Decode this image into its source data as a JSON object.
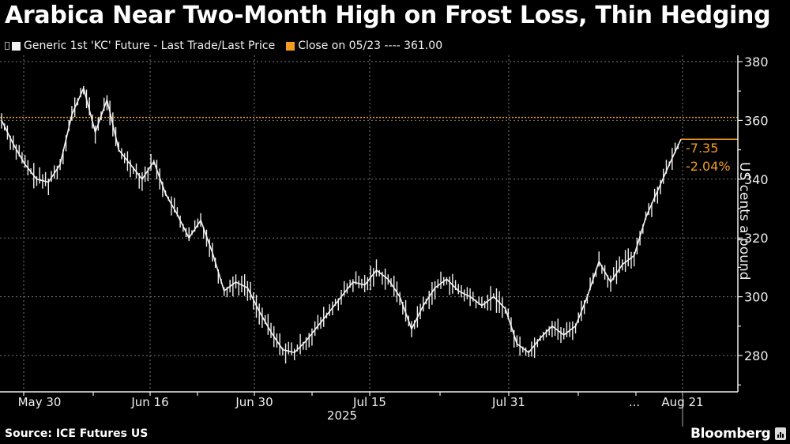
{
  "title": "Arabica Near Two-Month High on Frost Loss, Thin Hedging",
  "legend": {
    "series_label": "Generic 1st 'KC' Future - Last Trade/Last Price",
    "series_color": "#f0f0f0",
    "close_label": "Close on 05/23 ---- 361.00",
    "close_color": "#f39c1f"
  },
  "annotation": {
    "change": "-7.35",
    "change_pct": "-2.04%",
    "color": "#f39c1f"
  },
  "axis": {
    "ylabel": "US cents a pound",
    "year_label": "2025",
    "ellipsis": "..."
  },
  "footer": {
    "source": "Source: ICE Futures US",
    "brand": "Bloomberg"
  },
  "chart_data": {
    "type": "line",
    "title": "Arabica Near Two-Month High on Frost Loss, Thin Hedging",
    "xlabel": "2025",
    "ylabel": "US cents a pound",
    "ylim": [
      268,
      384
    ],
    "yticks": [
      280,
      300,
      320,
      340,
      360,
      380
    ],
    "xticks": [
      "May 30",
      "Jun 16",
      "Jun 30",
      "Jul 15",
      "Jul 31",
      "...",
      "Aug 21"
    ],
    "grid": true,
    "legend_position": "top-left",
    "reference_line": {
      "label": "Close on 05/23",
      "value": 361.0
    },
    "last_value_annotation": {
      "change": -7.35,
      "change_pct": -2.04,
      "approx_last": 353.6
    },
    "series": [
      {
        "name": "Generic 1st 'KC' Future - Last Trade/Last Price",
        "x": [
          "May 26",
          "May 28",
          "May 30",
          "Jun 2",
          "Jun 4",
          "Jun 6",
          "Jun 9",
          "Jun 10",
          "Jun 11",
          "Jun 12",
          "Jun 13",
          "Jun 16",
          "Jun 17",
          "Jun 18",
          "Jun 19",
          "Jun 20",
          "Jun 23",
          "Jun 24",
          "Jun 25",
          "Jun 26",
          "Jun 27",
          "Jun 30",
          "Jul 1",
          "Jul 2",
          "Jul 3",
          "Jul 7",
          "Jul 8",
          "Jul 9",
          "Jul 10",
          "Jul 11",
          "Jul 14",
          "Jul 15",
          "Jul 16",
          "Jul 17",
          "Jul 18",
          "Jul 21",
          "Jul 22",
          "Jul 23",
          "Jul 24",
          "Jul 25",
          "Jul 28",
          "Jul 29",
          "Jul 30",
          "Jul 31",
          "Aug 1",
          "Aug 4",
          "Aug 5",
          "Aug 6",
          "Aug 7",
          "Aug 8",
          "Aug 11",
          "Aug 12",
          "Aug 13",
          "Aug 14",
          "Aug 15",
          "Aug 18",
          "Aug 19",
          "Aug 20",
          "Aug 21"
        ],
        "values": [
          360,
          352,
          345,
          340,
          339,
          345,
          362,
          371,
          356,
          367,
          350,
          345,
          340,
          346,
          335,
          328,
          320,
          326,
          315,
          302,
          305,
          303,
          295,
          288,
          282,
          281,
          285,
          290,
          295,
          300,
          305,
          304,
          309,
          306,
          300,
          289,
          297,
          303,
          306,
          302,
          300,
          297,
          300,
          296,
          284,
          281,
          286,
          290,
          287,
          290,
          300,
          312,
          305,
          311,
          314,
          327,
          336,
          345,
          353.6
        ]
      }
    ]
  }
}
